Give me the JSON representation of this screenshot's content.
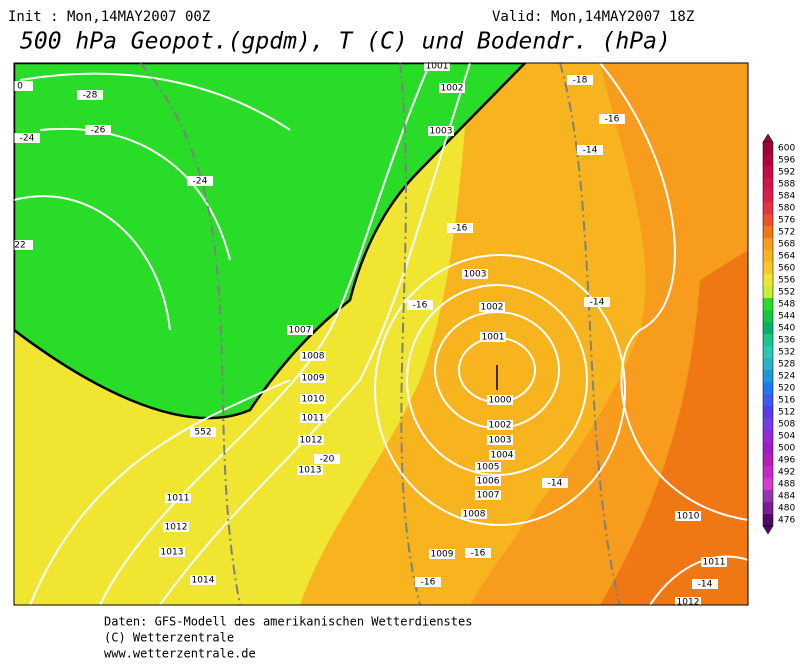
{
  "header": {
    "init": "Init : Mon,14MAY2007 00Z",
    "valid": "Valid: Mon,14MAY2007 18Z",
    "title": "500 hPa Geopot.(gpdm), T (C) und Bodendr. (hPa)"
  },
  "legend": {
    "values": [
      600,
      596,
      592,
      588,
      584,
      580,
      576,
      572,
      568,
      564,
      560,
      556,
      552,
      548,
      544,
      540,
      536,
      532,
      528,
      524,
      520,
      516,
      512,
      508,
      504,
      500,
      496,
      492,
      488,
      484,
      480,
      476
    ],
    "colors": [
      "#a0003c",
      "#b4003c",
      "#c80a46",
      "#d21446",
      "#dc1e46",
      "#e63246",
      "#f05032",
      "#f07814",
      "#f89c1e",
      "#f8b41e",
      "#f8c828",
      "#f0e632",
      "#c8f032",
      "#28dc28",
      "#14c83c",
      "#00b464",
      "#14c88c",
      "#28c8b4",
      "#28b4c8",
      "#1e96dc",
      "#1e78f0",
      "#3c5af0",
      "#5a3cf0",
      "#783ce6",
      "#9628dc",
      "#a01ec8",
      "#b41eb4",
      "#c828c8",
      "#d23cd2",
      "#9632b4",
      "#781e96",
      "#500a64"
    ]
  },
  "map_labels": [
    "1001",
    "1002",
    "1003",
    "-28",
    "-26",
    "-24",
    "-24",
    "22",
    "-18",
    "-16",
    "-14",
    "-16",
    "1003",
    "-16",
    "1002",
    "-14",
    "1001",
    "1000",
    "1007",
    "1008",
    "1009",
    "1010",
    "1011",
    "1012",
    "1013",
    "-20",
    "1002",
    "1003",
    "1004",
    "1005",
    "1006",
    "1007",
    "1008",
    "-14",
    "1011",
    "1012",
    "1013",
    "1014",
    "1009",
    "-16",
    "-16",
    "1010",
    "1011",
    "-14",
    "1012",
    "552",
    "0"
  ],
  "footer": [
    "Daten: GFS-Modell des amerikanischen Wetterdienstes",
    "(C) Wetterzentrale",
    "www.wetterzentrale.de"
  ]
}
